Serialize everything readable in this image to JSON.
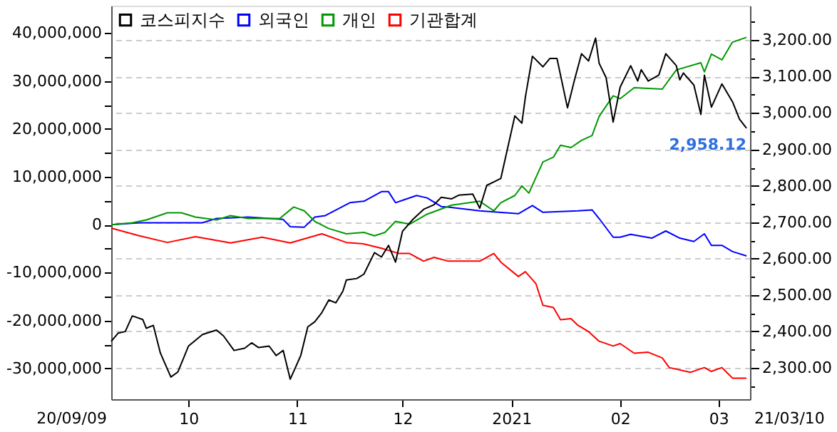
{
  "chart_data": {
    "type": "line",
    "legend": "top left",
    "grid": "y",
    "xlim": [
      "2020-09-09",
      "2021-03-10"
    ],
    "annotations": [
      "20/09/09",
      "21/03/10"
    ],
    "xticks": [
      {
        "value": "2020-10-01",
        "label": "10"
      },
      {
        "value": "2020-11-01",
        "label": "11"
      },
      {
        "value": "2020-12-01",
        "label": "12"
      },
      {
        "value": "2021-01-01",
        "label": "2021"
      },
      {
        "value": "2021-02-01",
        "label": "02"
      },
      {
        "value": "2021-03-01",
        "label": "03"
      }
    ],
    "ylim": [
      -36400000,
      45700000
    ],
    "yticks": [
      {
        "value": -30000000,
        "label": "-30,000,000"
      },
      {
        "value": -25000000,
        "label": null
      },
      {
        "value": -20000000,
        "label": "-20,000,000"
      },
      {
        "value": -15000000,
        "label": null
      },
      {
        "value": -10000000,
        "label": "-10,000,000"
      },
      {
        "value": -5000000,
        "label": null
      },
      {
        "value": 0,
        "label": "0"
      },
      {
        "value": 5000000,
        "label": null
      },
      {
        "value": 10000000,
        "label": "10,000,000"
      },
      {
        "value": 15000000,
        "label": null
      },
      {
        "value": 20000000,
        "label": "20,000,000"
      },
      {
        "value": 25000000,
        "label": null
      },
      {
        "value": 30000000,
        "label": "30,000,000"
      },
      {
        "value": 35000000,
        "label": null
      },
      {
        "value": 40000000,
        "label": "40,000,000"
      }
    ],
    "y2lim": [
      2213,
      3295
    ],
    "y2ticks": [
      {
        "value": 2250,
        "label": null
      },
      {
        "value": 2300,
        "label": "2,300.00"
      },
      {
        "value": 2350,
        "label": null
      },
      {
        "value": 2400,
        "label": "2,400.00"
      },
      {
        "value": 2450,
        "label": null
      },
      {
        "value": 2500,
        "label": "2,500.00"
      },
      {
        "value": 2550,
        "label": null
      },
      {
        "value": 2600,
        "label": "2,600.00"
      },
      {
        "value": 2650,
        "label": null
      },
      {
        "value": 2700,
        "label": "2,700.00"
      },
      {
        "value": 2750,
        "label": null
      },
      {
        "value": 2800,
        "label": "2,800.00"
      },
      {
        "value": 2850,
        "label": null
      },
      {
        "value": 2900,
        "label": "2,900.00"
      },
      {
        "value": 2950,
        "label": null
      },
      {
        "value": 3000,
        "label": "3,000.00"
      },
      {
        "value": 3050,
        "label": null
      },
      {
        "value": 3100,
        "label": "3,100.00"
      },
      {
        "value": 3150,
        "label": null
      },
      {
        "value": 3200,
        "label": "3,200.00"
      },
      {
        "value": 3250,
        "label": null
      }
    ],
    "series": [
      {
        "name": "코스피지수",
        "color": "#000000",
        "axis": "y2",
        "x": [
          "2020-09-09",
          "2020-09-11",
          "2020-09-13",
          "2020-09-15",
          "2020-09-18",
          "2020-09-19",
          "2020-09-21",
          "2020-09-23",
          "2020-09-26",
          "2020-09-28",
          "2020-10-01",
          "2020-10-05",
          "2020-10-09",
          "2020-10-11",
          "2020-10-14",
          "2020-10-17",
          "2020-10-19",
          "2020-10-21",
          "2020-10-24",
          "2020-10-26",
          "2020-10-28",
          "2020-10-30",
          "2020-11-02",
          "2020-11-04",
          "2020-11-06",
          "2020-11-08",
          "2020-11-10",
          "2020-11-12",
          "2020-11-14",
          "2020-11-15",
          "2020-11-18",
          "2020-11-20",
          "2020-11-23",
          "2020-11-25",
          "2020-11-27",
          "2020-11-29",
          "2020-12-01",
          "2020-12-04",
          "2020-12-07",
          "2020-12-10",
          "2020-12-12",
          "2020-12-15",
          "2020-12-17",
          "2020-12-21",
          "2020-12-23",
          "2020-12-25",
          "2020-12-29",
          "2020-12-31",
          "2021-01-02",
          "2021-01-04",
          "2021-01-05",
          "2021-01-07",
          "2021-01-10",
          "2021-01-12",
          "2021-01-14",
          "2021-01-17",
          "2021-01-19",
          "2021-01-21",
          "2021-01-23",
          "2021-01-25",
          "2021-01-26",
          "2021-01-28",
          "2021-01-30",
          "2021-02-01",
          "2021-02-04",
          "2021-02-06",
          "2021-02-07",
          "2021-02-09",
          "2021-02-12",
          "2021-02-14",
          "2021-02-17",
          "2021-02-18",
          "2021-02-19",
          "2021-02-22",
          "2021-02-24",
          "2021-02-25",
          "2021-02-27",
          "2021-03-02",
          "2021-03-05",
          "2021-03-07",
          "2021-03-09"
        ],
        "values": [
          2372,
          2395,
          2399,
          2442,
          2432,
          2408,
          2416,
          2340,
          2274,
          2288,
          2359,
          2391,
          2403,
          2387,
          2347,
          2353,
          2368,
          2355,
          2359,
          2333,
          2347,
          2268,
          2333,
          2412,
          2426,
          2451,
          2486,
          2478,
          2510,
          2541,
          2545,
          2557,
          2616,
          2604,
          2636,
          2590,
          2675,
          2708,
          2735,
          2748,
          2768,
          2764,
          2774,
          2777,
          2738,
          2801,
          2820,
          2906,
          2992,
          2972,
          3044,
          3156,
          3127,
          3150,
          3150,
          3014,
          3091,
          3163,
          3143,
          3206,
          3137,
          3097,
          2975,
          3071,
          3130,
          3088,
          3119,
          3088,
          3104,
          3163,
          3130,
          3091,
          3110,
          3077,
          2996,
          3104,
          3016,
          3080,
          3031,
          2983,
          2958.12
        ],
        "value_labels": [
          null,
          null,
          null,
          null,
          null,
          null,
          null,
          null,
          null,
          null,
          null,
          null,
          null,
          null,
          null,
          null,
          null,
          null,
          null,
          null,
          null,
          null,
          null,
          null,
          null,
          null,
          null,
          null,
          null,
          null,
          null,
          null,
          null,
          null,
          null,
          null,
          null,
          null,
          null,
          null,
          null,
          null,
          null,
          null,
          null,
          null,
          null,
          null,
          null,
          null,
          null,
          null,
          null,
          null,
          null,
          null,
          null,
          null,
          null,
          null,
          null,
          null,
          null,
          null,
          null,
          null,
          null,
          null,
          null,
          null,
          null,
          null,
          null,
          null,
          null,
          null,
          null,
          null,
          null,
          null,
          "2,958.12"
        ]
      },
      {
        "name": "외국인",
        "color": "#0000ff",
        "x": [
          "2020-09-09",
          "2020-09-17",
          "2020-09-24",
          "2020-10-05",
          "2020-10-09",
          "2020-10-18",
          "2020-10-28",
          "2020-10-30",
          "2020-11-03",
          "2020-11-06",
          "2020-11-09",
          "2020-11-16",
          "2020-11-20",
          "2020-11-25",
          "2020-11-27",
          "2020-11-29",
          "2020-12-01",
          "2020-12-05",
          "2020-12-08",
          "2020-12-12",
          "2020-12-14",
          "2020-12-23",
          "2021-01-03",
          "2021-01-07",
          "2021-01-10",
          "2021-01-20",
          "2021-01-24",
          "2021-01-26",
          "2021-01-30",
          "2021-02-01",
          "2021-02-04",
          "2021-02-10",
          "2021-02-14",
          "2021-02-18",
          "2021-02-22",
          "2021-02-25",
          "2021-02-27",
          "2021-03-02",
          "2021-03-05",
          "2021-03-09"
        ],
        "values": [
          0,
          400000,
          400000,
          400000,
          1300000,
          1600000,
          1100000,
          -400000,
          -500000,
          1600000,
          1900000,
          4600000,
          4900000,
          6900000,
          6900000,
          4600000,
          5100000,
          6100000,
          5600000,
          3800000,
          3700000,
          2900000,
          2300000,
          4000000,
          2600000,
          2900000,
          3100000,
          1300000,
          -2600000,
          -2600000,
          -2000000,
          -2800000,
          -1300000,
          -2800000,
          -3500000,
          -1900000,
          -4300000,
          -4300000,
          -5600000,
          -6500000
        ]
      },
      {
        "name": "개인",
        "color": "#009900",
        "x": [
          "2020-09-09",
          "2020-09-15",
          "2020-09-19",
          "2020-09-25",
          "2020-09-29",
          "2020-10-03",
          "2020-10-09",
          "2020-10-13",
          "2020-10-18",
          "2020-10-27",
          "2020-10-31",
          "2020-11-03",
          "2020-11-06",
          "2020-11-10",
          "2020-11-15",
          "2020-11-20",
          "2020-11-23",
          "2020-11-26",
          "2020-11-29",
          "2020-12-03",
          "2020-12-08",
          "2020-12-15",
          "2020-12-23",
          "2020-12-27",
          "2020-12-29",
          "2021-01-02",
          "2021-01-04",
          "2021-01-06",
          "2021-01-10",
          "2021-01-13",
          "2021-01-15",
          "2021-01-18",
          "2021-01-21",
          "2021-01-24",
          "2021-01-26",
          "2021-01-30",
          "2021-02-01",
          "2021-02-05",
          "2021-02-13",
          "2021-02-17",
          "2021-02-24",
          "2021-02-25",
          "2021-02-27",
          "2021-03-02",
          "2021-03-05",
          "2021-03-09"
        ],
        "values": [
          0,
          400000,
          1000000,
          2500000,
          2500000,
          1600000,
          1000000,
          1900000,
          1300000,
          1300000,
          3700000,
          2900000,
          700000,
          -800000,
          -1900000,
          -1600000,
          -2300000,
          -1600000,
          700000,
          100000,
          2200000,
          4100000,
          4900000,
          2900000,
          4600000,
          6100000,
          8100000,
          6600000,
          13100000,
          14100000,
          16600000,
          16100000,
          17600000,
          18600000,
          22600000,
          26900000,
          26300000,
          28600000,
          28300000,
          32300000,
          33800000,
          31900000,
          35600000,
          34400000,
          38100000,
          39100000
        ]
      },
      {
        "name": "기관합계",
        "color": "#ff0000",
        "x": [
          "2020-09-09",
          "2020-09-17",
          "2020-09-25",
          "2020-10-03",
          "2020-10-13",
          "2020-10-22",
          "2020-10-30",
          "2020-11-08",
          "2020-11-15",
          "2020-11-20",
          "2020-11-25",
          "2020-11-30",
          "2020-12-03",
          "2020-12-07",
          "2020-12-10",
          "2020-12-14",
          "2020-12-23",
          "2020-12-27",
          "2020-12-29",
          "2021-01-03",
          "2021-01-05",
          "2021-01-08",
          "2021-01-10",
          "2021-01-13",
          "2021-01-15",
          "2021-01-18",
          "2021-01-20",
          "2021-01-23",
          "2021-01-26",
          "2021-01-30",
          "2021-02-01",
          "2021-02-05",
          "2021-02-09",
          "2021-02-13",
          "2021-02-15",
          "2021-02-21",
          "2021-02-25",
          "2021-02-27",
          "2021-03-02",
          "2021-03-05",
          "2021-03-09"
        ],
        "values": [
          -700000,
          -2300000,
          -3700000,
          -2500000,
          -3800000,
          -2600000,
          -3800000,
          -1900000,
          -3700000,
          -4000000,
          -4900000,
          -6000000,
          -6000000,
          -7600000,
          -6800000,
          -7600000,
          -7600000,
          -6000000,
          -7800000,
          -10800000,
          -9800000,
          -12300000,
          -16800000,
          -17300000,
          -19800000,
          -19600000,
          -21000000,
          -22300000,
          -24300000,
          -25300000,
          -24800000,
          -26800000,
          -26600000,
          -27800000,
          -29800000,
          -30800000,
          -29800000,
          -30600000,
          -29800000,
          -32000000,
          -32000000
        ]
      }
    ]
  }
}
